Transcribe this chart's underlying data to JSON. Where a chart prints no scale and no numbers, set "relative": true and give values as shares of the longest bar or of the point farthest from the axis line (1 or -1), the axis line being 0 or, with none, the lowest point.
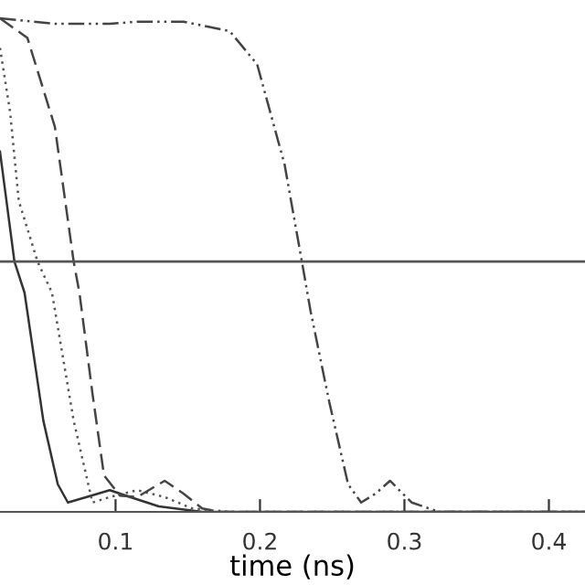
{
  "chart_data": {
    "type": "line",
    "relative": true,
    "xlabel": "time (ns)",
    "xlim": [
      0.02,
      0.425
    ],
    "xticks": [
      0.1,
      0.2,
      0.3,
      0.4
    ],
    "grid": false,
    "marker": "none",
    "ref_lines": [
      {
        "axis": "y",
        "value": 0.507,
        "color": "#555555",
        "line_style": "solid"
      }
    ],
    "series": [
      {
        "color": "#333333",
        "line_style": "solid",
        "x": [
          0.02,
          0.03,
          0.037,
          0.05,
          0.06,
          0.067,
          0.08,
          0.096,
          0.11,
          0.13,
          0.16,
          0.425
        ],
        "values": [
          0.73,
          0.507,
          0.444,
          0.185,
          0.056,
          0.019,
          0.03,
          0.044,
          0.03,
          0.011,
          0,
          0
        ]
      },
      {
        "color": "#555555",
        "line_style": "dotted",
        "x": [
          0.02,
          0.027,
          0.033,
          0.046,
          0.056,
          0.071,
          0.084,
          0.096,
          0.115,
          0.134,
          0.153,
          0.179,
          0.425
        ],
        "values": [
          0.94,
          0.81,
          0.63,
          0.507,
          0.444,
          0.185,
          0.019,
          0.03,
          0.044,
          0.03,
          0.007,
          0,
          0
        ]
      },
      {
        "color": "#444444",
        "line_style": "dashed",
        "x": [
          0.02,
          0.039,
          0.058,
          0.071,
          0.075,
          0.084,
          0.092,
          0.103,
          0.115,
          0.134,
          0.147,
          0.16,
          0.172,
          0.425
        ],
        "values": [
          1.0,
          0.96,
          0.78,
          0.507,
          0.444,
          0.24,
          0.074,
          0.033,
          0.03,
          0.063,
          0.037,
          0.007,
          0,
          0
        ]
      },
      {
        "color": "#444444",
        "line_style": "dashdotdot",
        "x": [
          0.02,
          0.058,
          0.096,
          0.115,
          0.147,
          0.179,
          0.198,
          0.217,
          0.229,
          0.235,
          0.248,
          0.261,
          0.27,
          0.28,
          0.29,
          0.305,
          0.324,
          0.425
        ],
        "values": [
          1.0,
          0.989,
          0.989,
          0.993,
          0.993,
          0.974,
          0.907,
          0.704,
          0.507,
          0.407,
          0.222,
          0.056,
          0.019,
          0.037,
          0.063,
          0.019,
          0,
          0
        ]
      }
    ]
  }
}
